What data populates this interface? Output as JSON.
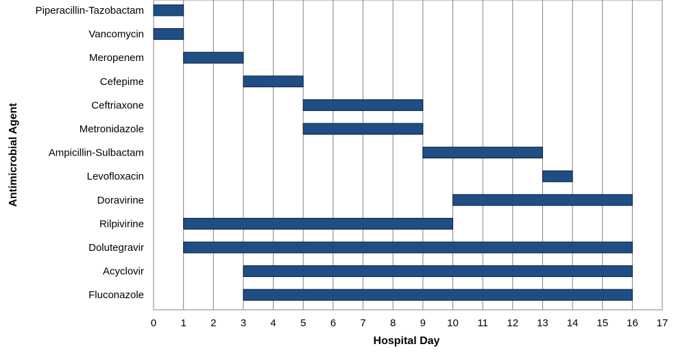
{
  "chart_data": {
    "type": "bar",
    "orientation": "horizontal-range",
    "xlabel": "Hospital Day",
    "ylabel": "Antimicrobial Agent",
    "xlim": [
      0,
      17
    ],
    "x_ticks": [
      "0",
      "1",
      "2",
      "3",
      "4",
      "5",
      "6",
      "7",
      "8",
      "9",
      "10",
      "11",
      "12",
      "13",
      "14",
      "15",
      "16",
      "17"
    ],
    "grid": "vertical",
    "bar_color": "#1f4e85",
    "categories": [
      "Piperacillin-Tazobactam",
      "Vancomycin",
      "Meropenem",
      "Cefepime",
      "Ceftriaxone",
      "Metronidazole",
      "Ampicillin-Sulbactam",
      "Levofloxacin",
      "Doravirine",
      "Rilpivirine",
      "Dolutegravir",
      "Acyclovir",
      "Fluconazole"
    ],
    "ranges": [
      [
        0,
        1
      ],
      [
        0,
        1
      ],
      [
        1,
        3
      ],
      [
        3,
        5
      ],
      [
        5,
        9
      ],
      [
        5,
        9
      ],
      [
        9,
        13
      ],
      [
        13,
        14
      ],
      [
        10,
        16
      ],
      [
        1,
        10
      ],
      [
        1,
        16
      ],
      [
        3,
        16
      ],
      [
        3,
        16
      ]
    ]
  }
}
